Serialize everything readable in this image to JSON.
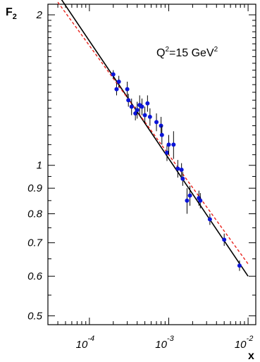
{
  "chart_data": {
    "type": "scatter",
    "title": "",
    "xlabel": "x",
    "ylabel": "F",
    "ylabel_sub": "2",
    "x_scale": "log",
    "y_scale": "log",
    "xlim": [
      3e-05,
      0.0125
    ],
    "ylim": [
      0.48,
      2.1
    ],
    "x_ticks": [
      {
        "value": 0.0001,
        "base": "10",
        "exp": "-4"
      },
      {
        "value": 0.001,
        "base": "10",
        "exp": "-3"
      },
      {
        "value": 0.01,
        "base": "10",
        "exp": "-2"
      }
    ],
    "y_ticks": [
      {
        "value": 0.5,
        "label": "0.5"
      },
      {
        "value": 0.6,
        "label": "0.6"
      },
      {
        "value": 0.7,
        "label": "0.7"
      },
      {
        "value": 0.8,
        "label": "0.8"
      },
      {
        "value": 0.9,
        "label": "0.9"
      },
      {
        "value": 1,
        "label": "1"
      },
      {
        "value": 2,
        "label": "2"
      }
    ],
    "annotation": {
      "text_main": "Q",
      "sup1": "2",
      "text_mid": "=15 GeV",
      "sup2": "2"
    },
    "grid": false,
    "series": [
      {
        "marker": "circle",
        "color": "#0a14d8",
        "points": [
          {
            "x": 0.0002,
            "y": 1.52,
            "err": 0.03
          },
          {
            "x": 0.00022,
            "y": 1.42,
            "err": 0.04
          },
          {
            "x": 0.000235,
            "y": 1.47,
            "err": 0.04
          },
          {
            "x": 0.0003,
            "y": 1.42,
            "err": 0.05
          },
          {
            "x": 0.00031,
            "y": 1.35,
            "err": 0.04
          },
          {
            "x": 0.00034,
            "y": 1.31,
            "err": 0.05
          },
          {
            "x": 0.00038,
            "y": 1.27,
            "err": 0.04
          },
          {
            "x": 0.0004,
            "y": 1.29,
            "err": 0.05
          },
          {
            "x": 0.00043,
            "y": 1.32,
            "err": 0.06
          },
          {
            "x": 0.00046,
            "y": 1.31,
            "err": 0.05
          },
          {
            "x": 0.0005,
            "y": 1.26,
            "err": 0.05
          },
          {
            "x": 0.00054,
            "y": 1.33,
            "err": 0.05
          },
          {
            "x": 0.00058,
            "y": 1.25,
            "err": 0.05
          },
          {
            "x": 0.0007,
            "y": 1.22,
            "err": 0.05
          },
          {
            "x": 0.0008,
            "y": 1.2,
            "err": 0.05
          },
          {
            "x": 0.00082,
            "y": 1.15,
            "err": 0.05
          },
          {
            "x": 0.00095,
            "y": 1.06,
            "err": 0.04
          },
          {
            "x": 0.001,
            "y": 1.1,
            "err": 0.05
          },
          {
            "x": 0.00115,
            "y": 1.1,
            "err": 0.07
          },
          {
            "x": 0.0013,
            "y": 0.985,
            "err": 0.04
          },
          {
            "x": 0.00145,
            "y": 0.98,
            "err": 0.03
          },
          {
            "x": 0.0015,
            "y": 0.94,
            "err": 0.03
          },
          {
            "x": 0.0017,
            "y": 0.85,
            "err": 0.05
          },
          {
            "x": 0.00185,
            "y": 0.87,
            "err": 0.04
          },
          {
            "x": 0.0024,
            "y": 0.86,
            "err": 0.03
          },
          {
            "x": 0.0025,
            "y": 0.85,
            "err": 0.03
          },
          {
            "x": 0.0033,
            "y": 0.78,
            "err": 0.02
          },
          {
            "x": 0.005,
            "y": 0.71,
            "err": 0.02
          },
          {
            "x": 0.0078,
            "y": 0.63,
            "err": 0.015
          }
        ]
      }
    ],
    "fit_lines": [
      {
        "style": "solid",
        "color": "#000000",
        "points": [
          [
            4e-05,
            2.2
          ],
          [
            0.01,
            0.6
          ]
        ]
      },
      {
        "style": "dashed",
        "color": "#e8211b",
        "points": [
          [
            4e-05,
            2.12
          ],
          [
            0.01,
            0.635
          ]
        ]
      }
    ]
  }
}
